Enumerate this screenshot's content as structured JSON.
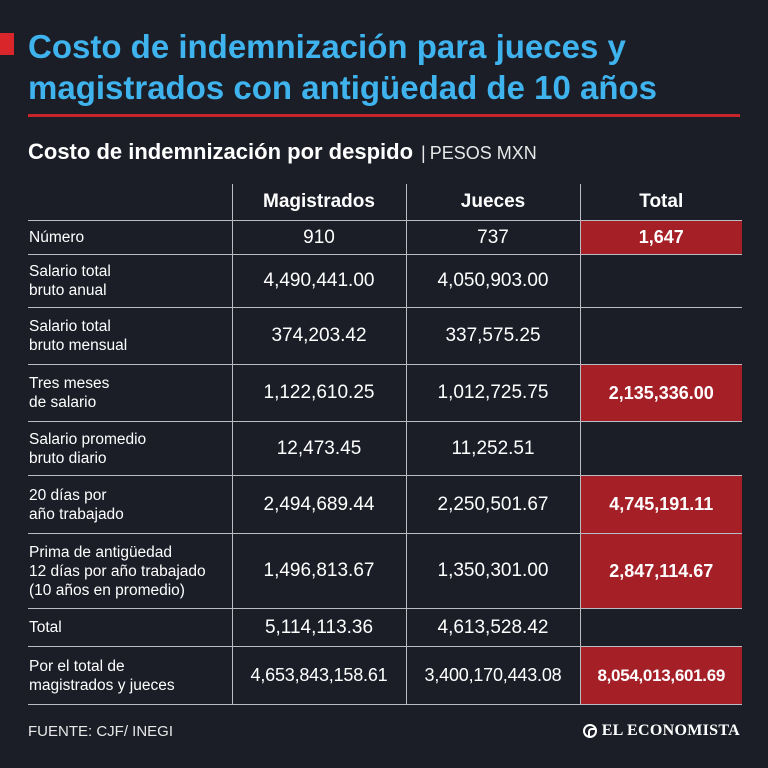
{
  "title": "Costo de indemnización para jueces y magistrados con antigüedad de 10 años",
  "subtitle": "Costo de indemnización por despido",
  "subtitle_sep": "|",
  "unit": "PESOS MXN",
  "colors": {
    "background": "#1b1e27",
    "title": "#3fb3ee",
    "accent_red": "#d8262b",
    "highlight_cell": "#a51f27",
    "grid": "#b9bcc3"
  },
  "source": "FUENTE: CJF/ INEGI",
  "brand": "EL ECONOMISTA",
  "chart_data": {
    "type": "table",
    "columns": [
      "",
      "Magistrados",
      "Jueces",
      "Total"
    ],
    "rows": [
      {
        "label": "Número",
        "magistrados": "910",
        "jueces": "737",
        "total": "1,647",
        "highlight": true
      },
      {
        "label": "Salario total\nbruto anual",
        "magistrados": "4,490,441.00",
        "jueces": "4,050,903.00",
        "total": "",
        "highlight": false
      },
      {
        "label": "Salario total\nbruto mensual",
        "magistrados": "374,203.42",
        "jueces": "337,575.25",
        "total": "",
        "highlight": false
      },
      {
        "label": "Tres meses\nde salario",
        "magistrados": "1,122,610.25",
        "jueces": "1,012,725.75",
        "total": "2,135,336.00",
        "highlight": true
      },
      {
        "label": "Salario promedio\nbruto diario",
        "magistrados": "12,473.45",
        "jueces": "11,252.51",
        "total": "",
        "highlight": false
      },
      {
        "label": "20 días por\naño trabajado",
        "magistrados": "2,494,689.44",
        "jueces": "2,250,501.67",
        "total": "4,745,191.11",
        "highlight": true
      },
      {
        "label": "Prima de antigüedad\n12 días por año trabajado\n(10 años en promedio)",
        "magistrados": "1,496,813.67",
        "jueces": "1,350,301.00",
        "total": "2,847,114.67",
        "highlight": true
      },
      {
        "label": "Total",
        "magistrados": "5,114,113.36",
        "jueces": "4,613,528.42",
        "total": "",
        "highlight": false
      },
      {
        "label": "Por el total de\nmagistrados y jueces",
        "magistrados": "4,653,843,158.61",
        "jueces": "3,400,170,443.08",
        "total": "8,054,013,601.69",
        "highlight": true
      }
    ]
  }
}
